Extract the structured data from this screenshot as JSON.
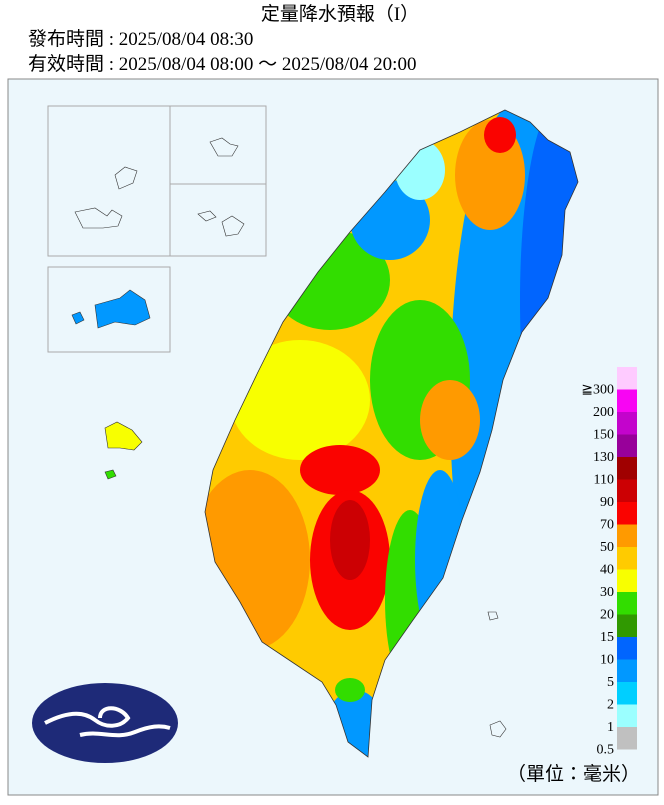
{
  "header": {
    "title": "定量降水預報（I）",
    "issued": "發布時間 : 2025/08/04 08:30",
    "valid": "有效時間 : 2025/08/04 08:00 ～ 2025/08/04 20:00"
  },
  "legend": {
    "items": [
      {
        "label": "≧300",
        "color": "#fecbff"
      },
      {
        "label": "200",
        "color": "#f805f3"
      },
      {
        "label": "150",
        "color": "#c304cc"
      },
      {
        "label": "130",
        "color": "#98009a"
      },
      {
        "label": "110",
        "color": "#a00000"
      },
      {
        "label": "90",
        "color": "#cc0003"
      },
      {
        "label": "70",
        "color": "#fa0300"
      },
      {
        "label": "50",
        "color": "#ff9a00"
      },
      {
        "label": "40",
        "color": "#ffcb00"
      },
      {
        "label": "30",
        "color": "#f8ff00"
      },
      {
        "label": "20",
        "color": "#32dd00"
      },
      {
        "label": "15",
        "color": "#309901"
      },
      {
        "label": "10",
        "color": "#0165fe"
      },
      {
        "label": "5",
        "color": "#0198ff"
      },
      {
        "label": "2",
        "color": "#00cfff"
      },
      {
        "label": "1",
        "color": "#9bffff"
      },
      {
        "label": "0.5",
        "color": "#c0c0c0"
      }
    ],
    "unit": "（單位：毫米）"
  }
}
